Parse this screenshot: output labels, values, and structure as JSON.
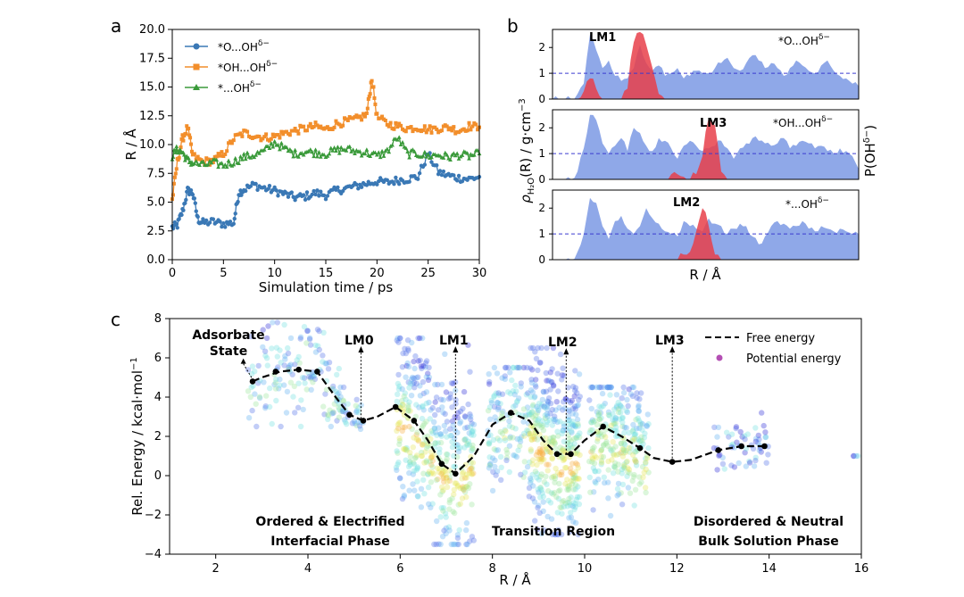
{
  "colors": {
    "blue": "#3a78b5",
    "orange": "#f28e2b",
    "green": "#3a9a3a",
    "density": "#8fa8e8",
    "prob": "#e8404a",
    "refline": "#3b3bd0",
    "black": "#000000"
  },
  "chart_data": [
    {
      "panel": "a",
      "type": "line",
      "xlabel": "Simulation time / ps",
      "ylabel": "R / Å",
      "xlim": [
        0,
        30
      ],
      "ylim": [
        0,
        20
      ],
      "xticks": [
        0,
        5,
        10,
        15,
        20,
        25,
        30
      ],
      "yticks": [
        0.0,
        2.5,
        5.0,
        7.5,
        10.0,
        12.5,
        15.0,
        17.5,
        20.0
      ],
      "legend_position": "top-left",
      "series": [
        {
          "name": "*O...OH",
          "sup": "δ−",
          "marker": "circle",
          "color": "blue",
          "x": [
            0,
            0.5,
            1,
            1.5,
            2,
            2.5,
            3,
            4,
            5,
            6,
            6.5,
            7,
            8,
            9,
            10,
            11,
            12,
            13,
            14,
            15,
            16,
            17,
            18,
            19,
            20,
            21,
            22,
            23,
            24,
            25,
            26,
            27,
            28,
            29,
            30
          ],
          "y": [
            2.8,
            3.0,
            4.2,
            6.0,
            5.8,
            3.5,
            3.2,
            3.3,
            3.1,
            3.2,
            5.8,
            6.1,
            6.5,
            6.2,
            6.0,
            5.7,
            5.4,
            5.5,
            5.8,
            5.6,
            6.0,
            6.2,
            6.4,
            6.6,
            6.8,
            6.7,
            6.9,
            7.0,
            7.2,
            9.2,
            7.6,
            7.3,
            7.1,
            7.0,
            7.2
          ]
        },
        {
          "name": "*OH...OH",
          "sup": "δ−",
          "marker": "square",
          "color": "orange",
          "x": [
            0,
            0.5,
            1,
            1.5,
            2,
            3,
            4,
            5,
            6,
            7,
            8,
            9,
            10,
            11,
            12,
            13,
            14,
            15,
            16,
            17,
            18,
            19,
            19.5,
            20,
            21,
            22,
            23,
            24,
            25,
            26,
            27,
            28,
            29,
            30
          ],
          "y": [
            5.2,
            8.5,
            10.5,
            11.5,
            9.0,
            8.5,
            8.6,
            9.2,
            10.5,
            11.0,
            10.8,
            10.6,
            10.7,
            11.0,
            11.2,
            11.4,
            11.6,
            11.3,
            11.8,
            12.0,
            12.2,
            12.6,
            15.8,
            12.4,
            11.8,
            11.6,
            11.4,
            11.5,
            11.3,
            11.4,
            11.5,
            11.2,
            11.6,
            11.5
          ]
        },
        {
          "name": "*...OH",
          "sup": "δ−",
          "marker": "triangle",
          "color": "green",
          "x": [
            0,
            0.5,
            1,
            1.5,
            2,
            3,
            4,
            5,
            6,
            7,
            8,
            9,
            10,
            11,
            12,
            13,
            14,
            15,
            16,
            17,
            18,
            19,
            20,
            21,
            22,
            23,
            24,
            25,
            26,
            27,
            28,
            29,
            30
          ],
          "y": [
            9.0,
            9.6,
            9.3,
            8.6,
            8.4,
            8.2,
            8.4,
            8.2,
            8.5,
            8.9,
            9.1,
            9.4,
            10.2,
            9.6,
            9.2,
            9.4,
            9.3,
            9.2,
            9.5,
            9.6,
            9.4,
            9.3,
            9.0,
            9.4,
            10.6,
            9.2,
            9.2,
            9.0,
            9.1,
            8.9,
            9.1,
            9.0,
            9.2
          ]
        }
      ]
    },
    {
      "panel": "b",
      "type": "area",
      "xlabel": "R / Å",
      "ylabel_left": "ρ",
      "ylabel_left_sub": "H₂O",
      "ylabel_left_rest": "(R) / g·cm",
      "ylabel_left_exp": "−3",
      "ylabel_right": "P(OH",
      "ylabel_right_exp": "δ−",
      "ylabel_right_close": ")",
      "ylim": [
        0,
        2.7
      ],
      "yticks": [
        0,
        1,
        2
      ],
      "reference_line": 1,
      "subpanels": [
        {
          "species": "*O...OH",
          "sup": "δ−",
          "peak_label": "LM1",
          "density": [
            0,
            0,
            0,
            0,
            0.2,
            0.6,
            2.5,
            1.9,
            1.2,
            1.5,
            0.9,
            0.7,
            0.8,
            1.2,
            2.1,
            1.4,
            1.1,
            1.3,
            0.9,
            1.0,
            1.2,
            0.8,
            0.9,
            1.1,
            1.0,
            1.0,
            1.2,
            1.4,
            1.6,
            1.2,
            1.1,
            1.4,
            1.7,
            1.5,
            1.2,
            1.4,
            1.2,
            0.9,
            1.2,
            1.5,
            1.3,
            1.1,
            1.0,
            1.3,
            1.5,
            1.1,
            0.9,
            0.8,
            0.6,
            0.5
          ],
          "probability": [
            0,
            0,
            0,
            0,
            0,
            0.3,
            0.8,
            0.4,
            0,
            0,
            0,
            0,
            0.4,
            2.2,
            2.6,
            2.1,
            1.2,
            0.2,
            0,
            0,
            0,
            0,
            0,
            0,
            0,
            0,
            0,
            0,
            0,
            0,
            0,
            0,
            0,
            0,
            0,
            0,
            0,
            0,
            0,
            0,
            0,
            0,
            0,
            0,
            0,
            0,
            0,
            0,
            0,
            0
          ]
        },
        {
          "species": "*OH...OH",
          "sup": "δ−",
          "peak_label": "LM3",
          "density": [
            0,
            0,
            0,
            0,
            0.3,
            1.2,
            2.5,
            2.3,
            1.4,
            1.0,
            1.3,
            1.6,
            1.1,
            2.0,
            1.8,
            1.3,
            1.1,
            1.6,
            1.5,
            1.2,
            0.8,
            1.3,
            1.5,
            1.3,
            1.1,
            1.2,
            1.3,
            1.5,
            1.2,
            0.8,
            1.2,
            1.4,
            1.6,
            1.5,
            1.4,
            1.3,
            1.4,
            1.6,
            1.2,
            1.3,
            1.5,
            1.4,
            1.2,
            1.3,
            1.1,
            1.0,
            1.2,
            1.1,
            0.9,
            0.4
          ],
          "probability": [
            0,
            0,
            0,
            0,
            0,
            0,
            0,
            0,
            0,
            0,
            0,
            0,
            0,
            0,
            0,
            0,
            0,
            0,
            0,
            0.2,
            0.2,
            0.1,
            0,
            0.2,
            0.9,
            2.4,
            2.1,
            0.3,
            0,
            0,
            0,
            0,
            0,
            0,
            0,
            0,
            0,
            0,
            0,
            0,
            0,
            0,
            0,
            0,
            0,
            0,
            0,
            0,
            0,
            0
          ]
        },
        {
          "species": "*...OH",
          "sup": "δ−",
          "peak_label": "LM2",
          "density": [
            0,
            0,
            0,
            0,
            0.3,
            1.0,
            2.4,
            2.2,
            1.3,
            0.8,
            1.5,
            1.7,
            1.2,
            1.0,
            1.3,
            2.0,
            1.6,
            1.4,
            1.1,
            1.0,
            0.9,
            1.5,
            1.3,
            1.2,
            1.1,
            1.6,
            1.4,
            1.3,
            1.0,
            1.2,
            1.4,
            1.3,
            0.9,
            0.6,
            0.9,
            1.3,
            1.5,
            1.4,
            1.2,
            1.3,
            1.5,
            1.2,
            1.1,
            1.3,
            1.2,
            1.1,
            1.2,
            1.1,
            1.0,
            1.0
          ],
          "probability": [
            0,
            0,
            0,
            0,
            0,
            0,
            0,
            0,
            0,
            0,
            0,
            0,
            0,
            0,
            0,
            0,
            0,
            0,
            0,
            0,
            0,
            0.2,
            0.3,
            1.1,
            2.0,
            1.3,
            0.2,
            0,
            0,
            0,
            0,
            0,
            0,
            0,
            0,
            0,
            0,
            0,
            0,
            0,
            0,
            0,
            0,
            0,
            0,
            0,
            0,
            0,
            0,
            0
          ]
        }
      ]
    },
    {
      "panel": "c",
      "type": "scatter",
      "xlabel": "R / Å",
      "ylabel": "Rel. Energy / kcal·mol",
      "ylabel_exp": "−1",
      "xlim": [
        1,
        16
      ],
      "ylim": [
        -4,
        8
      ],
      "xticks": [
        2,
        4,
        6,
        8,
        10,
        12,
        14,
        16
      ],
      "yticks": [
        -4,
        -2,
        0,
        2,
        4,
        6,
        8
      ],
      "legend_position": "top-right",
      "legend": [
        "Free energy",
        "Potential energy"
      ],
      "free_energy": {
        "x": [
          2.8,
          3.0,
          3.4,
          3.8,
          4.2,
          4.6,
          4.9,
          5.2,
          5.5,
          5.9,
          6.3,
          6.6,
          6.9,
          7.2,
          7.6,
          8.0,
          8.4,
          8.8,
          9.1,
          9.4,
          9.7,
          10.0,
          10.4,
          10.8,
          11.2,
          11.5,
          11.9,
          12.3,
          12.9,
          13.4,
          13.9
        ],
        "y": [
          4.8,
          5.0,
          5.3,
          5.4,
          5.3,
          4.0,
          3.1,
          2.8,
          3.0,
          3.5,
          2.8,
          1.8,
          0.6,
          0.1,
          1.0,
          2.6,
          3.2,
          2.8,
          1.8,
          1.1,
          1.1,
          1.8,
          2.5,
          2.0,
          1.4,
          0.9,
          0.7,
          0.8,
          1.3,
          1.5,
          1.5
        ]
      },
      "dot_markers": {
        "x": [
          2.8,
          3.3,
          3.8,
          4.2,
          4.9,
          5.2,
          5.9,
          6.3,
          6.9,
          7.2,
          8.4,
          9.4,
          9.7,
          10.4,
          11.2,
          11.9,
          12.9,
          13.4,
          13.9
        ],
        "y": [
          4.8,
          5.3,
          5.4,
          5.3,
          3.1,
          2.8,
          3.5,
          2.8,
          0.6,
          0.1,
          3.2,
          1.1,
          1.1,
          2.5,
          1.4,
          0.7,
          1.3,
          1.5,
          1.5
        ]
      },
      "clusters": [
        {
          "x": [
            2.7,
            4.8
          ],
          "y": [
            2.5,
            7.8
          ],
          "n": 150,
          "hot": 0.15
        },
        {
          "x": [
            4.6,
            5.2
          ],
          "y": [
            2.0,
            4.5
          ],
          "n": 40,
          "hot": 0.1
        },
        {
          "x": [
            5.9,
            7.6
          ],
          "y": [
            -3.5,
            7.0
          ],
          "n": 420,
          "hot": 0.55
        },
        {
          "x": [
            7.9,
            8.8
          ],
          "y": [
            -1.5,
            5.5
          ],
          "n": 140,
          "hot": 0.25
        },
        {
          "x": [
            8.8,
            9.9
          ],
          "y": [
            -3.0,
            6.5
          ],
          "n": 380,
          "hot": 0.6
        },
        {
          "x": [
            10.1,
            11.4
          ],
          "y": [
            -2.5,
            4.5
          ],
          "n": 280,
          "hot": 0.45
        },
        {
          "x": [
            12.8,
            14.0
          ],
          "y": [
            0.0,
            3.2
          ],
          "n": 60,
          "hot": 0.05
        },
        {
          "x": [
            15.8,
            16.0
          ],
          "y": [
            -0.8,
            1.0
          ],
          "n": 4,
          "hot": 0.0
        }
      ],
      "arrows": [
        {
          "label": "LM0",
          "x": 5.15,
          "y_bottom": 2.9,
          "y_top": 6.5
        },
        {
          "label": "LM1",
          "x": 7.2,
          "y_bottom": 0.1,
          "y_top": 6.5
        },
        {
          "label": "LM2",
          "x": 9.6,
          "y_bottom": 1.1,
          "y_top": 6.4
        },
        {
          "label": "LM3",
          "x": 11.9,
          "y_bottom": 0.7,
          "y_top": 6.5
        }
      ],
      "annotations": {
        "adsorbate_line1": "Adsorbate",
        "adsorbate_line2": "State",
        "ordered_line1": "Ordered & Electrified",
        "ordered_line2": "Interfacial Phase",
        "transition": "Transition Region",
        "disordered_line1": "Disordered & Neutral",
        "disordered_line2": "Bulk Solution Phase"
      }
    }
  ],
  "panel_labels": [
    "a",
    "b",
    "c"
  ],
  "axis_label_b_x": "R / Å"
}
